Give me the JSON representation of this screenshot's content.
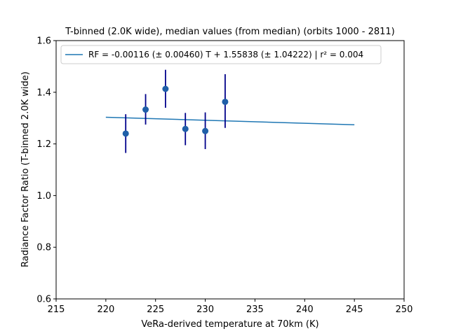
{
  "chart_data": {
    "type": "scatter",
    "title": "T-binned (2.0K wide), median values (from median) (orbits 1000 - 2811)",
    "xlabel": "VeRa-derived temperature at 70km (K)",
    "ylabel": "Radiance Factor Ratio (T-binned 2.0K wide)",
    "xlim": [
      215,
      250
    ],
    "ylim": [
      0.6,
      1.6
    ],
    "xticks": [
      215,
      220,
      225,
      230,
      235,
      240,
      245,
      250
    ],
    "yticks": [
      0.6,
      0.8,
      1.0,
      1.2,
      1.4,
      1.6
    ],
    "xtick_labels": [
      "215",
      "220",
      "225",
      "230",
      "235",
      "240",
      "245",
      "250"
    ],
    "ytick_labels": [
      "0.6",
      "0.8",
      "1.0",
      "1.2",
      "1.4",
      "1.6"
    ],
    "grid": false,
    "legend_position": "top-left",
    "series": [
      {
        "kind": "points-with-errorbars",
        "color": "#1f5fa8",
        "errorbar_color": "#00008b",
        "points": [
          {
            "x": 222,
            "y": 1.24,
            "y_low": 1.165,
            "y_high": 1.315
          },
          {
            "x": 224,
            "y": 1.333,
            "y_low": 1.275,
            "y_high": 1.393
          },
          {
            "x": 226,
            "y": 1.413,
            "y_low": 1.34,
            "y_high": 1.487
          },
          {
            "x": 228,
            "y": 1.258,
            "y_low": 1.195,
            "y_high": 1.32
          },
          {
            "x": 230,
            "y": 1.25,
            "y_low": 1.18,
            "y_high": 1.322
          },
          {
            "x": 232,
            "y": 1.363,
            "y_low": 1.262,
            "y_high": 1.47
          }
        ]
      },
      {
        "kind": "fit-line",
        "name": "RF = -0.00116 (± 0.00460) T + 1.55838 (± 1.04222) | r² = 0.004",
        "color": "#1f77b4",
        "x": [
          220,
          245
        ],
        "y": [
          1.3032,
          1.2742
        ]
      }
    ]
  }
}
